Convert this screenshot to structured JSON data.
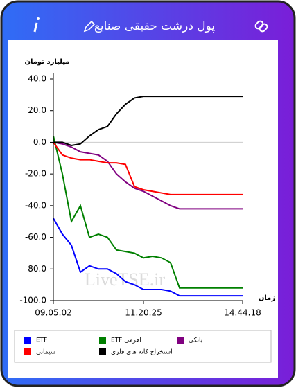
{
  "header": {
    "title": "پول درشت حقیقی صنایع"
  },
  "chart_data": {
    "type": "line",
    "y_label": "میلیارد تومان",
    "x_label": "زمان",
    "watermark": "LiveTSE.ir",
    "categories": [
      "09.05.02",
      null,
      null,
      null,
      null,
      null,
      null,
      null,
      null,
      null,
      "11.20.25",
      null,
      null,
      null,
      null,
      null,
      null,
      null,
      null,
      null,
      null,
      "14.44.18"
    ],
    "ylim": [
      -100,
      40
    ],
    "yticks": [
      {
        "value": 40,
        "label": "40.0"
      },
      {
        "value": 20,
        "label": "20.0"
      },
      {
        "value": 0,
        "label": "0.0"
      },
      {
        "value": -20,
        "label": "-20.0"
      },
      {
        "value": -40,
        "label": "-40.0"
      },
      {
        "value": -60,
        "label": "-60.0"
      },
      {
        "value": -80,
        "label": "-80.0"
      },
      {
        "value": -100,
        "label": "-100.0"
      }
    ],
    "series": [
      {
        "name": "ETF",
        "color": "#0000ff",
        "values": [
          -48,
          -58,
          -65,
          -82,
          -78,
          -80,
          -80,
          -83,
          -88,
          -90,
          -93,
          -93,
          -93,
          -94,
          -97,
          -97,
          -97,
          -97,
          -97,
          -97,
          -97,
          -97
        ]
      },
      {
        "name": "ETF اهرمی",
        "color": "#008000",
        "values": [
          4,
          -20,
          -50,
          -40,
          -60,
          -58,
          -60,
          -68,
          -69,
          -70,
          -73,
          -72,
          -73,
          -76,
          -92,
          -92,
          -92,
          -92,
          -92,
          -92,
          -92,
          -92
        ]
      },
      {
        "name": "بانکی",
        "color": "#800080",
        "values": [
          0,
          -1,
          -3,
          -6,
          -7,
          -8,
          -12,
          -20,
          -25,
          -29,
          -31,
          -34,
          -37,
          -40,
          -42,
          -42,
          -42,
          -42,
          -42,
          -42,
          -42,
          -42
        ]
      },
      {
        "name": "سیمانی",
        "color": "#ff0000",
        "values": [
          0,
          -8,
          -10,
          -11,
          -11,
          -12,
          -13,
          -13,
          -14,
          -28,
          -30,
          -31,
          -32,
          -33,
          -33,
          -33,
          -33,
          -33,
          -33,
          -33,
          -33,
          -33
        ]
      },
      {
        "name": "استخراج کانه های فلزی",
        "color": "#000000",
        "values": [
          0,
          0,
          -2,
          -1,
          4,
          8,
          10,
          18,
          24,
          28,
          29,
          29,
          29,
          29,
          29,
          29,
          29,
          29,
          29,
          29,
          29,
          29
        ]
      }
    ]
  }
}
